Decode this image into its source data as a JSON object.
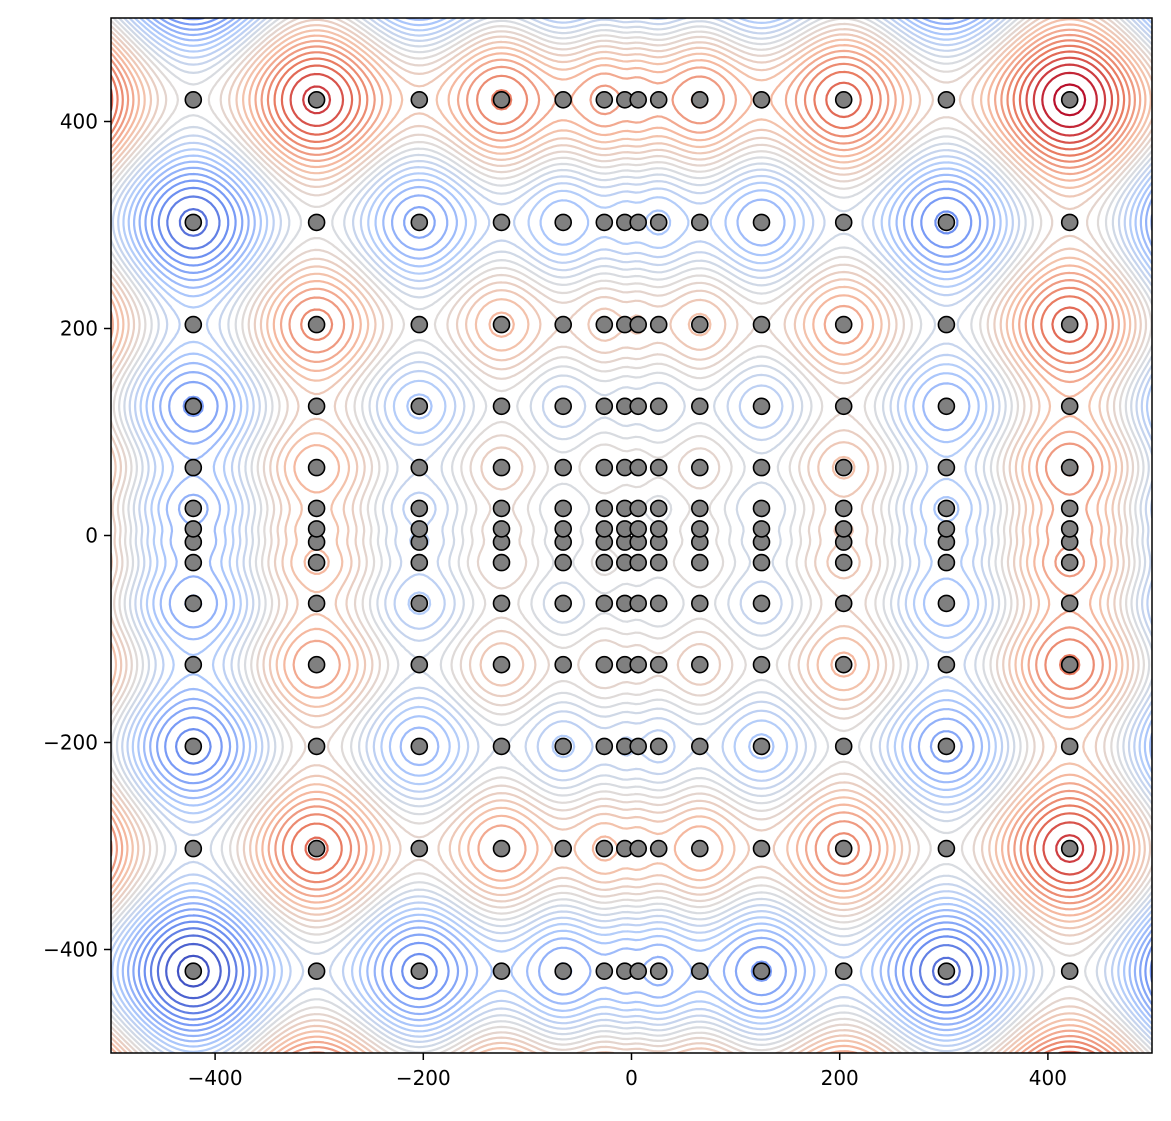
{
  "chart_data": {
    "type": "contour",
    "title": "",
    "xlabel": "",
    "ylabel": "",
    "xlim": [
      -500,
      500
    ],
    "ylim": [
      -500,
      500
    ],
    "grid": false,
    "legend": "none",
    "colormap": [
      "#3b4cc0",
      "#7396f5",
      "#b0cbfc",
      "#dcdddd",
      "#f6bfa6",
      "#e7755b",
      "#b40426"
    ],
    "point_color": "#808080",
    "point_edge_color": "#000000",
    "xticks": [
      -400,
      -200,
      0,
      200,
      400
    ],
    "yticks": [
      -400,
      -200,
      0,
      200,
      400
    ],
    "xtick_labels": [
      "−400",
      "−200",
      "0",
      "200",
      "400"
    ],
    "ytick_labels": [
      "−400",
      "−200",
      "0",
      "200",
      "400"
    ],
    "grid_coordinates": [
      -420.97,
      -302.52,
      -203.81,
      -124.84,
      -65.62,
      -26.14,
      -6.4,
      6.4,
      26.14,
      65.62,
      124.84,
      203.81,
      302.52,
      420.97
    ],
    "points_x": [
      -420.97,
      -302.52,
      -203.81,
      -124.84,
      -65.62,
      -26.14,
      -6.4,
      6.4,
      26.14,
      65.62,
      124.84,
      203.81,
      302.52,
      420.97
    ],
    "points_y": [
      -420.97,
      -302.52,
      -203.81,
      -124.84,
      -65.62,
      -26.14,
      -6.4,
      6.4,
      26.14,
      65.62,
      124.84,
      203.81,
      302.52,
      420.97
    ],
    "points_description_values": 196
  }
}
